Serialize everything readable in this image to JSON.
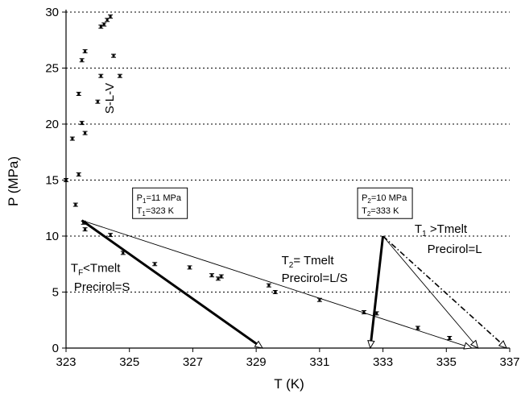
{
  "chart_data": {
    "type": "scatter",
    "title": "",
    "xlabel": "T (K)",
    "ylabel": "P (MPa)",
    "xlim": [
      323,
      337
    ],
    "ylim": [
      0,
      30
    ],
    "xticks": [
      "323",
      "325",
      "327",
      "329",
      "331",
      "333",
      "335",
      "337"
    ],
    "yticks": [
      "0",
      "5",
      "10",
      "15",
      "20",
      "25",
      "30"
    ],
    "grid": "horizontal dotted",
    "points": [
      [
        323.0,
        15.0
      ],
      [
        323.2,
        18.7
      ],
      [
        323.3,
        12.8
      ],
      [
        323.4,
        15.5
      ],
      [
        323.4,
        22.7
      ],
      [
        323.5,
        20.1
      ],
      [
        323.5,
        25.7
      ],
      [
        323.6,
        19.2
      ],
      [
        323.6,
        26.5
      ],
      [
        323.6,
        10.6
      ],
      [
        323.55,
        11.2
      ],
      [
        324.0,
        22.0
      ],
      [
        324.1,
        24.3
      ],
      [
        324.1,
        28.7
      ],
      [
        324.2,
        28.9
      ],
      [
        324.3,
        29.3
      ],
      [
        324.4,
        29.6
      ],
      [
        324.5,
        26.1
      ],
      [
        324.7,
        24.3
      ],
      [
        324.4,
        10.1
      ],
      [
        324.8,
        8.5
      ],
      [
        325.8,
        7.5
      ],
      [
        326.9,
        7.2
      ],
      [
        327.6,
        6.5
      ],
      [
        327.8,
        6.2
      ],
      [
        327.9,
        6.4
      ],
      [
        329.4,
        5.6
      ],
      [
        329.6,
        5.0
      ],
      [
        331.0,
        4.3
      ],
      [
        332.4,
        3.2
      ],
      [
        332.8,
        3.1
      ],
      [
        334.1,
        1.8
      ],
      [
        335.1,
        0.9
      ]
    ],
    "lines": [
      {
        "style": "thick",
        "points": [
          [
            323.5,
            11.4
          ],
          [
            329.2,
            0
          ]
        ],
        "arrow": "open-triangle"
      },
      {
        "style": "thin",
        "points": [
          [
            323.5,
            11.4
          ],
          [
            335.8,
            0
          ]
        ],
        "arrow": "open-triangle"
      },
      {
        "style": "thick",
        "points": [
          [
            333.0,
            10.0
          ],
          [
            332.6,
            0
          ]
        ],
        "arrow": "open-triangle"
      },
      {
        "style": "thin",
        "points": [
          [
            333.0,
            10.0
          ],
          [
            336.0,
            0
          ]
        ],
        "arrow": "open-triangle"
      },
      {
        "style": "dash-dot",
        "points": [
          [
            333.0,
            10.0
          ],
          [
            336.9,
            0
          ]
        ],
        "arrow": "open-triangle"
      }
    ],
    "annotations": [
      {
        "text": "S-L-V",
        "x": 324.5,
        "y": 22.3,
        "rotate": true
      },
      {
        "main": "T",
        "sub": "F",
        "rest": "<Tmelt",
        "x": 323.15,
        "y": 6.8
      },
      {
        "text": "Precirol=S",
        "x": 323.25,
        "y": 5.1
      },
      {
        "main": "T",
        "sub": "2",
        "rest": "= Tmelt",
        "x": 329.8,
        "y": 7.5
      },
      {
        "text": "Precirol=L/S",
        "x": 329.8,
        "y": 5.9
      },
      {
        "main": "T",
        "sub": "1",
        "rest": " >Tmelt",
        "x": 334.0,
        "y": 10.3
      },
      {
        "text": "Precirol=L",
        "x": 334.4,
        "y": 8.5
      }
    ],
    "boxes": [
      {
        "line1": {
          "main": "P",
          "sub": "1",
          "rest": "=11 MPa"
        },
        "line2": {
          "main": "T",
          "sub": "1",
          "rest": "=323 K"
        },
        "x": 325.1,
        "y": 14.3
      },
      {
        "line1": {
          "main": "P",
          "sub": "2",
          "rest": "=10 MPa"
        },
        "line2": {
          "main": "T",
          "sub": "2",
          "rest": "=333 K"
        },
        "x": 332.2,
        "y": 14.3
      }
    ]
  }
}
